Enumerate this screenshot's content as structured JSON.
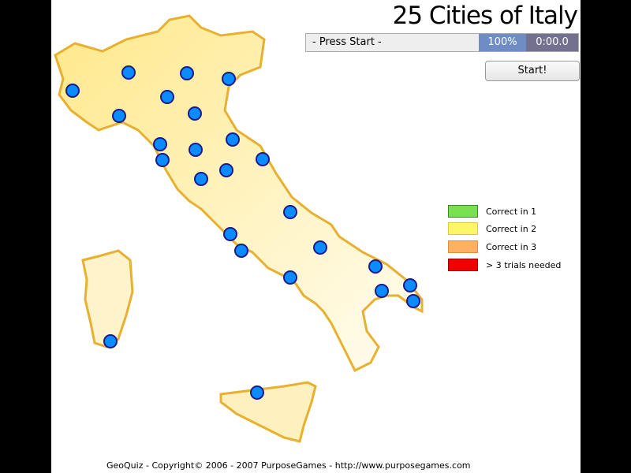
{
  "title": "25 Cities of Italy",
  "status": {
    "message": "- Press Start -",
    "percent": "100%",
    "timer": "0:00.0"
  },
  "start_label": "Start!",
  "legend": [
    {
      "label": "Correct in 1",
      "color": "#7be04f",
      "border": "#3a8a2a"
    },
    {
      "label": "Correct in 2",
      "color": "#fff568",
      "border": "#e0c840"
    },
    {
      "label": "Correct in 3",
      "color": "#ffb060",
      "border": "#d99040"
    },
    {
      "label": "> 3 trials needed",
      "color": "#f00000",
      "border": "#a00000"
    }
  ],
  "colors": {
    "land": "#fff0b8",
    "coast": "#e8b030",
    "city": "#0a8cff",
    "city_border": "#1a1a8a"
  },
  "city_count": 25,
  "footer": "GeoQuiz - Copyright© 2006 - 2007 PurposeGames - http://www.purposegames.com"
}
